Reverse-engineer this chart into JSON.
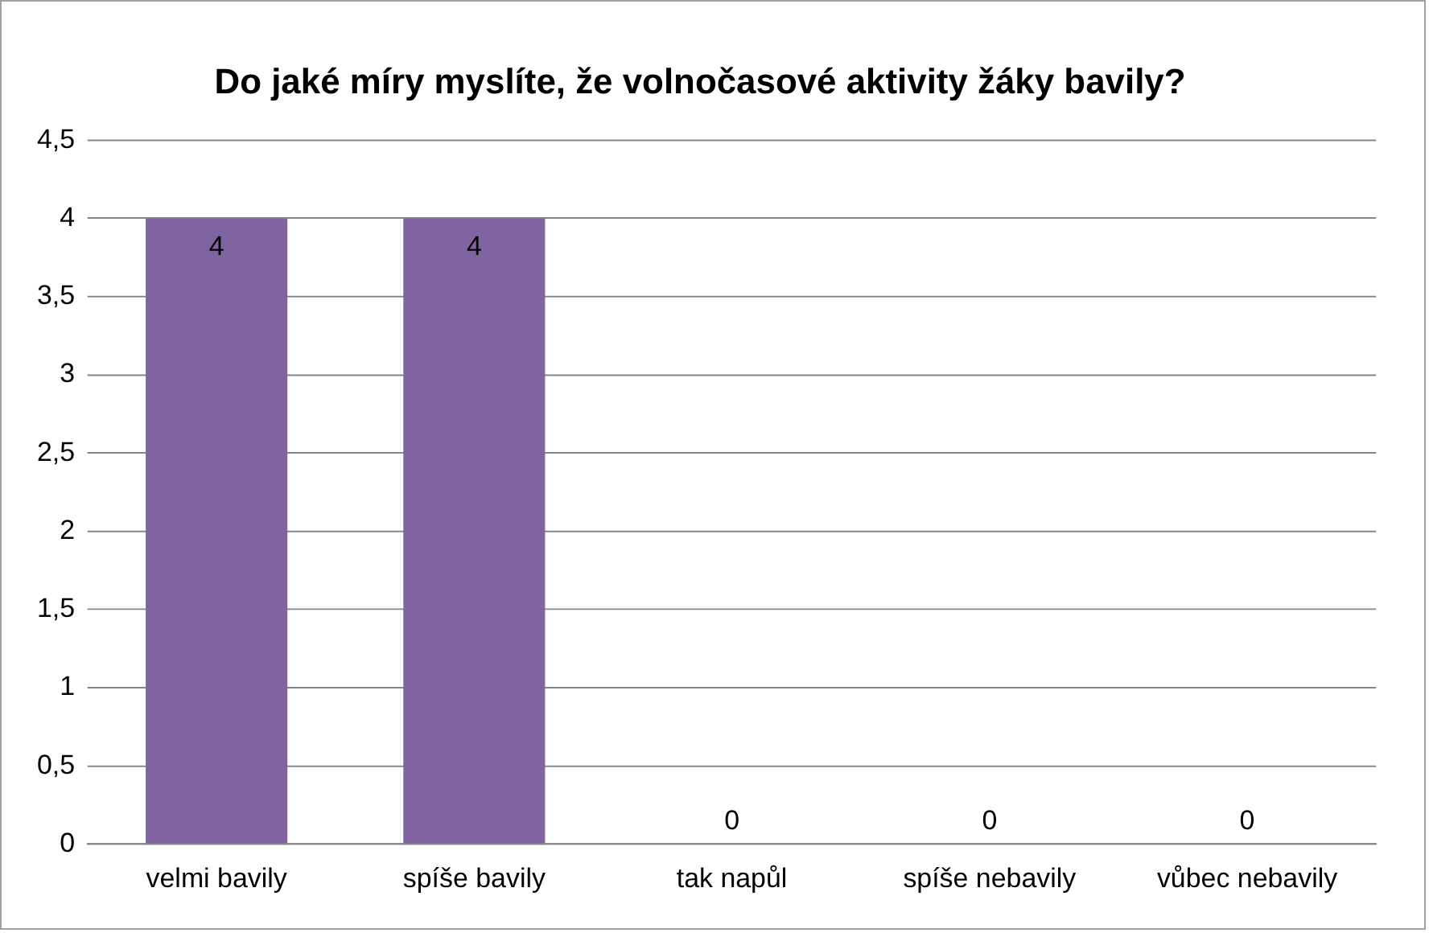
{
  "chart_data": {
    "type": "bar",
    "title": "Do jaké míry myslíte, že volnočasové aktivity žáky bavily?",
    "categories": [
      "velmi bavily",
      "spíše bavily",
      "tak napůl",
      "spíše nebavily",
      "vůbec nebavily"
    ],
    "values": [
      4,
      4,
      0,
      0,
      0
    ],
    "color": "#8064a2",
    "ylim": [
      0,
      4.5
    ],
    "yticks": [
      0,
      {
        "value": 0.5,
        "label": "0,5"
      },
      1,
      {
        "value": 1.5,
        "label": "1,5"
      },
      2,
      {
        "value": 2.5,
        "label": "2,5"
      },
      3,
      {
        "value": 3.5,
        "label": "3,5"
      },
      4,
      {
        "value": 4.5,
        "label": "4,5"
      }
    ],
    "grid": "y",
    "legend": false,
    "data_labels": true
  }
}
